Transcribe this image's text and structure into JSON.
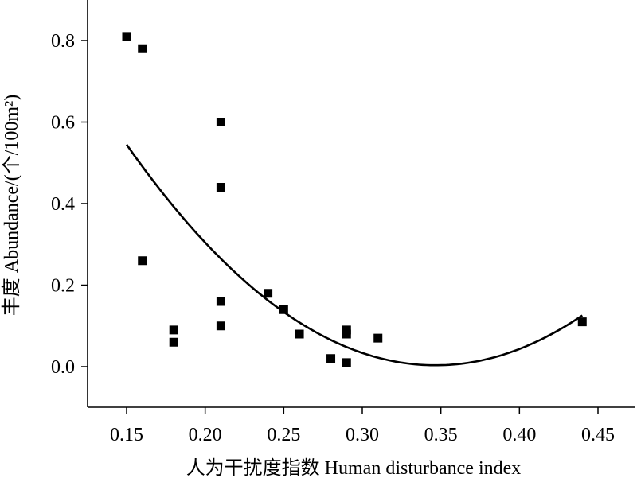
{
  "chart_data": {
    "type": "scatter",
    "xlabel": "人为干扰度指数 Human disturbance index",
    "ylabel": "丰度 Abundance/(个/100m²)",
    "xlim": [
      0.12,
      0.47
    ],
    "ylim": [
      -0.1,
      0.9
    ],
    "x_ticks": [
      0.15,
      0.2,
      0.25,
      0.3,
      0.35,
      0.4,
      0.45
    ],
    "x_tick_labels": [
      "0.15",
      "0.20",
      "0.25",
      "0.30",
      "0.35",
      "0.40",
      "0.45"
    ],
    "y_ticks": [
      0.0,
      0.2,
      0.4,
      0.6,
      0.8
    ],
    "y_tick_labels": [
      "0.0",
      "0.2",
      "0.4",
      "0.6",
      "0.8"
    ],
    "grid": false,
    "marker": "square",
    "point_color": "#000000",
    "points": [
      {
        "x": 0.15,
        "y": 0.81
      },
      {
        "x": 0.16,
        "y": 0.78
      },
      {
        "x": 0.16,
        "y": 0.26
      },
      {
        "x": 0.18,
        "y": 0.09
      },
      {
        "x": 0.18,
        "y": 0.06
      },
      {
        "x": 0.21,
        "y": 0.6
      },
      {
        "x": 0.21,
        "y": 0.44
      },
      {
        "x": 0.21,
        "y": 0.16
      },
      {
        "x": 0.21,
        "y": 0.1
      },
      {
        "x": 0.24,
        "y": 0.18
      },
      {
        "x": 0.25,
        "y": 0.14
      },
      {
        "x": 0.26,
        "y": 0.08
      },
      {
        "x": 0.28,
        "y": 0.02
      },
      {
        "x": 0.29,
        "y": 0.09
      },
      {
        "x": 0.29,
        "y": 0.08
      },
      {
        "x": 0.29,
        "y": 0.01
      },
      {
        "x": 0.31,
        "y": 0.07
      },
      {
        "x": 0.44,
        "y": 0.11
      }
    ],
    "fit_curve": {
      "type": "quadratic",
      "x": [
        0.15,
        0.2,
        0.25,
        0.3,
        0.345,
        0.4,
        0.44
      ],
      "y": [
        0.54,
        0.31,
        0.14,
        0.03,
        0.0,
        0.04,
        0.13
      ]
    }
  }
}
